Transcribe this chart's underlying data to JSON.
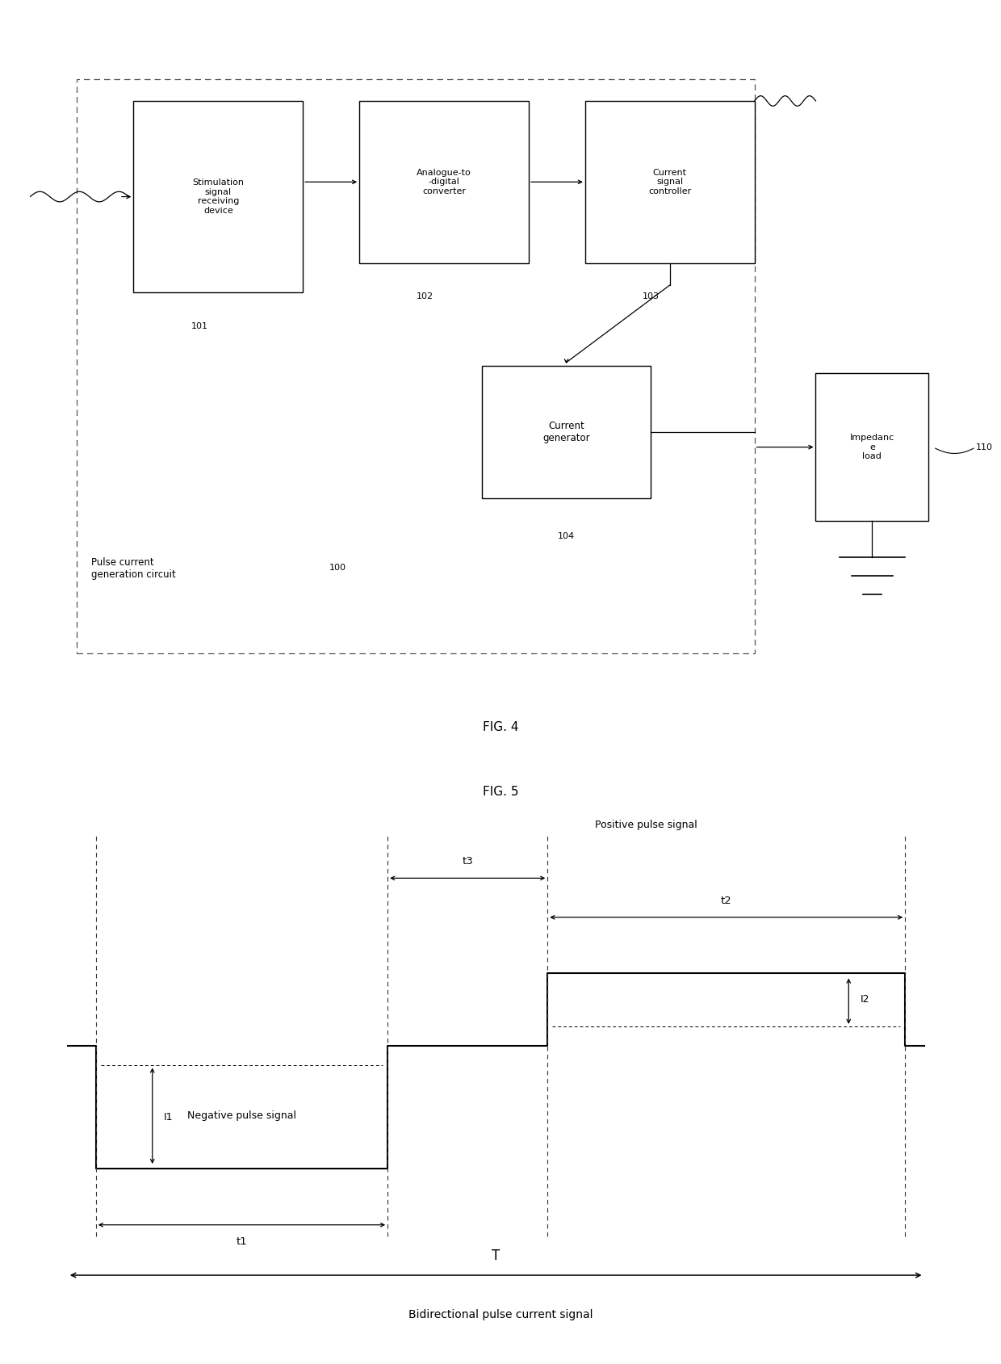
{
  "fig_width": 12.4,
  "fig_height": 16.89,
  "bg_color": "#ffffff",
  "fig4_title": "FIG. 4",
  "fig5_title": "FIG. 5",
  "fig5_caption": "Bidirectional pulse current signal",
  "box_labels": {
    "stimulation": "Stimulation\nsignal\nreceiving\ndevice",
    "adc": "Analogue-to\n-digital\nconverter",
    "controller": "Current\nsignal\ncontroller",
    "generator": "Current\ngenerator",
    "impedance": "Impedanc\ne\nload"
  },
  "refs": {
    "stimulation": "101",
    "adc": "102",
    "controller": "103",
    "generator": "104",
    "impedance": "110",
    "circuit": "100"
  },
  "pulse_labels": {
    "t1": "t1",
    "t2": "t2",
    "t3": "t3",
    "T": "T",
    "I1": "I1",
    "I2": "I2",
    "negative_label": "Negative pulse signal",
    "positive_label": "Positive pulse signal"
  }
}
